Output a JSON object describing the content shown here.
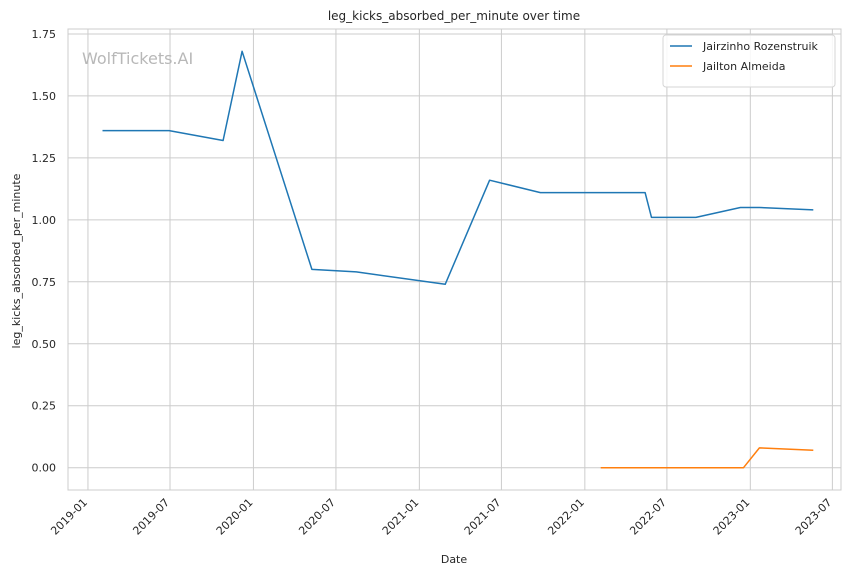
{
  "watermark": "WolfTickets.AI",
  "colors": {
    "grid": "#cccccc",
    "axis": "#cccccc",
    "text": "#262626",
    "watermark": "#b8b8b8",
    "background": "#ffffff"
  },
  "chart_data": {
    "type": "line",
    "title": "leg_kicks_absorbed_per_minute over time",
    "xlabel": "Date",
    "ylabel": "leg_kicks_absorbed_per_minute",
    "grid": true,
    "legend_position": "top-right",
    "xlim": [
      "2018-11-18",
      "2023-07-20"
    ],
    "ylim": [
      -0.09,
      1.77
    ],
    "x_ticks": [
      "2019-01",
      "2019-07",
      "2020-01",
      "2020-07",
      "2021-01",
      "2021-07",
      "2022-01",
      "2022-07",
      "2023-01",
      "2023-07"
    ],
    "y_ticks": [
      "0.00",
      "0.25",
      "0.50",
      "0.75",
      "1.00",
      "1.25",
      "1.50",
      "1.75"
    ],
    "series": [
      {
        "name": "Jairzinho Rozenstruik",
        "color": "#1f77b4",
        "points": [
          {
            "x": "2019-02-02",
            "y": 1.36
          },
          {
            "x": "2019-06-29",
            "y": 1.36
          },
          {
            "x": "2019-10-26",
            "y": 1.32
          },
          {
            "x": "2019-12-07",
            "y": 1.68
          },
          {
            "x": "2020-05-09",
            "y": 0.8
          },
          {
            "x": "2020-08-15",
            "y": 0.79
          },
          {
            "x": "2021-02-27",
            "y": 0.74
          },
          {
            "x": "2021-06-05",
            "y": 1.16
          },
          {
            "x": "2021-09-25",
            "y": 1.11
          },
          {
            "x": "2022-05-14",
            "y": 1.11
          },
          {
            "x": "2022-05-28",
            "y": 1.01
          },
          {
            "x": "2022-09-03",
            "y": 1.01
          },
          {
            "x": "2022-12-10",
            "y": 1.05
          },
          {
            "x": "2023-01-21",
            "y": 1.05
          },
          {
            "x": "2023-05-20",
            "y": 1.04
          }
        ]
      },
      {
        "name": "Jailton Almeida",
        "color": "#ff7f0e",
        "points": [
          {
            "x": "2022-02-05",
            "y": 0.0
          },
          {
            "x": "2022-12-17",
            "y": 0.0
          },
          {
            "x": "2023-01-21",
            "y": 0.08
          },
          {
            "x": "2023-05-20",
            "y": 0.07
          }
        ]
      }
    ]
  }
}
